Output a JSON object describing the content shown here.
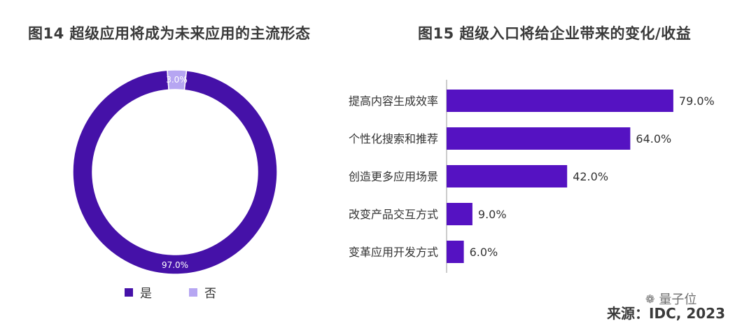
{
  "titles": {
    "left": "图14 超级应用将成为未来应用的主流形态",
    "right": "图15 超级入口将给企业带来的变化/收益"
  },
  "colors": {
    "primary": "#4511A8",
    "secondary": "#B6A6F2",
    "bar": "#5512C2"
  },
  "legend": {
    "yes": "是",
    "no": "否"
  },
  "source": "来源：IDC, 2023",
  "watermark": "量子位",
  "chart_data": [
    {
      "type": "pie",
      "donut": true,
      "title": "图14 超级应用将成为未来应用的主流形态",
      "categories": [
        "是",
        "否"
      ],
      "values": [
        97.0,
        3.0
      ],
      "labels": [
        "97.0%",
        "3.0%"
      ],
      "legend_position": "bottom"
    },
    {
      "type": "bar",
      "orientation": "horizontal",
      "title": "图15 超级入口将给企业带来的变化/收益",
      "categories": [
        "提高内容生成效率",
        "个性化搜索和推荐",
        "创造更多应用场景",
        "改变产品交互方式",
        "变革应用开发方式"
      ],
      "values": [
        79.0,
        64.0,
        42.0,
        9.0,
        6.0
      ],
      "labels": [
        "79.0%",
        "64.0%",
        "42.0%",
        "9.0%",
        "6.0%"
      ],
      "xlim": [
        0,
        100
      ]
    }
  ]
}
